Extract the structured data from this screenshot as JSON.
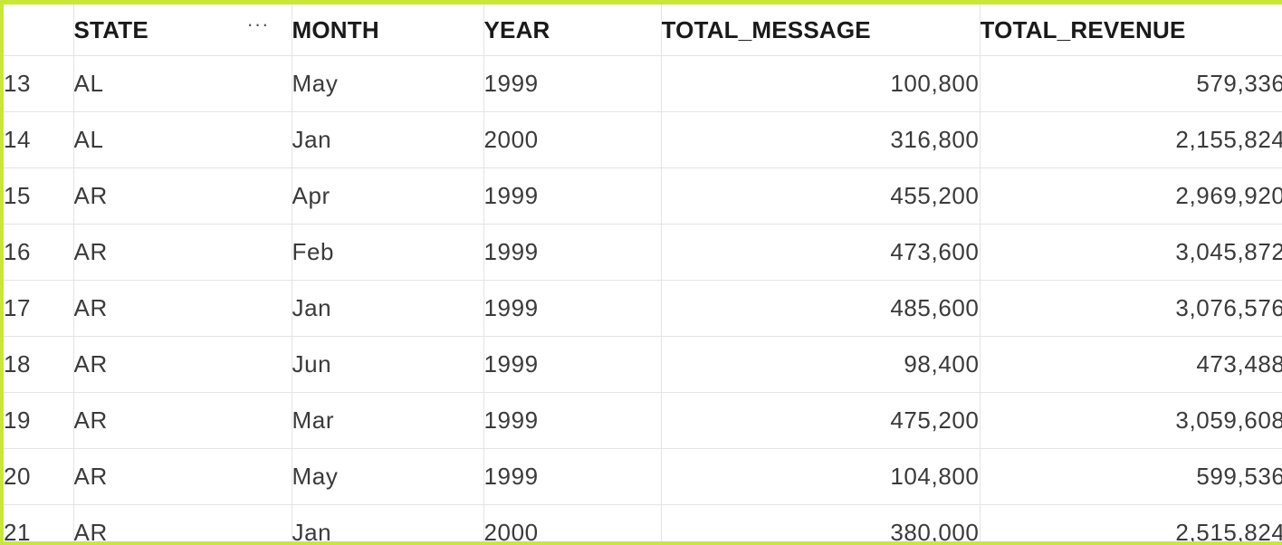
{
  "table": {
    "columns": {
      "state": "STATE",
      "month": "MONTH",
      "year": "YEAR",
      "total_message": "TOTAL_MESSAGE",
      "total_revenue": "TOTAL_REVENUE"
    },
    "column_menu_icon": "more-horizontal-icon",
    "rows": [
      {
        "index": "13",
        "state": "AL",
        "month": "May",
        "year": "1999",
        "total_message": "100,800",
        "total_revenue": "579,336"
      },
      {
        "index": "14",
        "state": "AL",
        "month": "Jan",
        "year": "2000",
        "total_message": "316,800",
        "total_revenue": "2,155,824"
      },
      {
        "index": "15",
        "state": "AR",
        "month": "Apr",
        "year": "1999",
        "total_message": "455,200",
        "total_revenue": "2,969,920"
      },
      {
        "index": "16",
        "state": "AR",
        "month": "Feb",
        "year": "1999",
        "total_message": "473,600",
        "total_revenue": "3,045,872"
      },
      {
        "index": "17",
        "state": "AR",
        "month": "Jan",
        "year": "1999",
        "total_message": "485,600",
        "total_revenue": "3,076,576"
      },
      {
        "index": "18",
        "state": "AR",
        "month": "Jun",
        "year": "1999",
        "total_message": "98,400",
        "total_revenue": "473,488"
      },
      {
        "index": "19",
        "state": "AR",
        "month": "Mar",
        "year": "1999",
        "total_message": "475,200",
        "total_revenue": "3,059,608"
      },
      {
        "index": "20",
        "state": "AR",
        "month": "May",
        "year": "1999",
        "total_message": "104,800",
        "total_revenue": "599,536"
      },
      {
        "index": "21",
        "state": "AR",
        "month": "Jan",
        "year": "2000",
        "total_message": "380,000",
        "total_revenue": "2,515,824"
      }
    ]
  },
  "colors": {
    "frame_highlight": "#c8e63c",
    "grid_line": "#e4e4e4",
    "row_index_text": "#a9a9a9",
    "header_text": "#1a1a1a",
    "cell_text": "#3a3a3a"
  }
}
